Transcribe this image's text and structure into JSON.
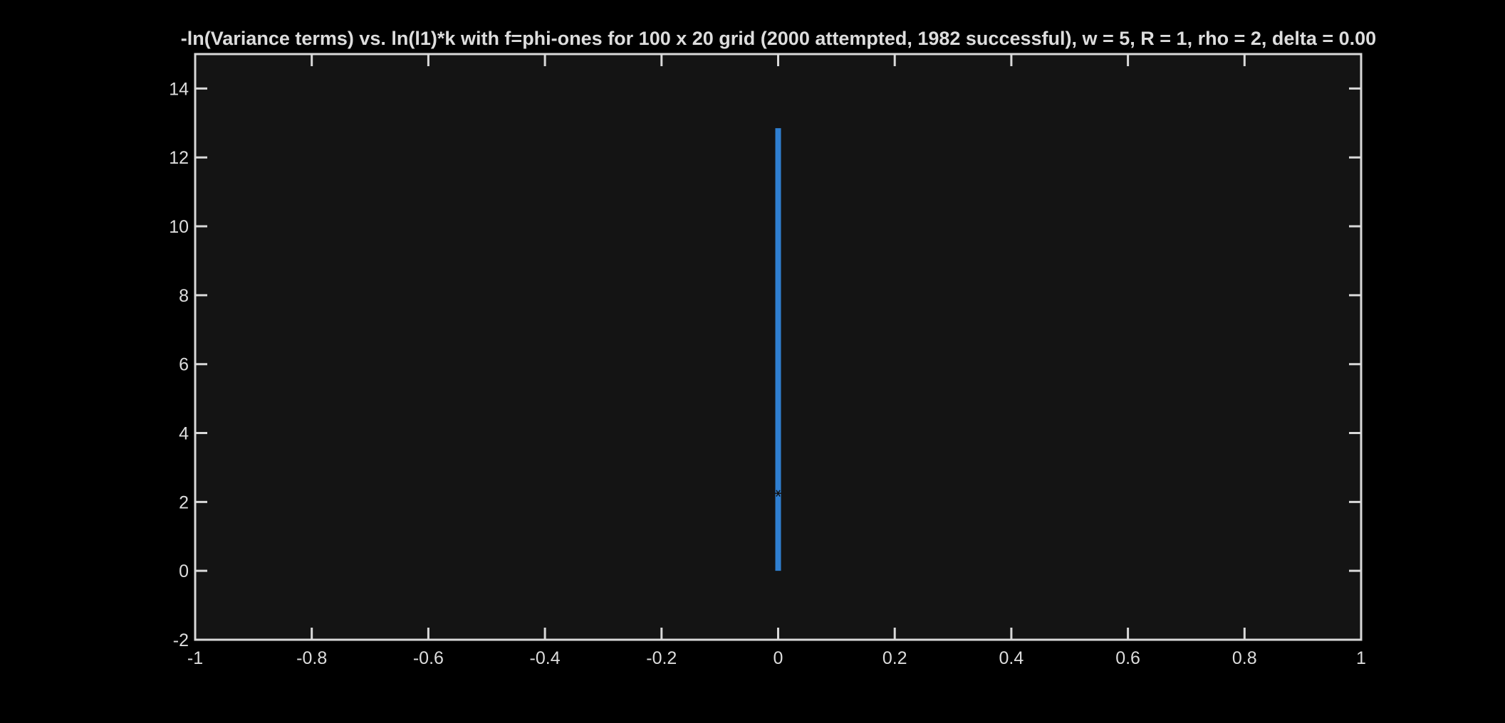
{
  "chart_data": {
    "type": "scatter",
    "title": "-ln(Variance terms) vs. ln(l1)*k with f=phi-ones for 100 x 20 grid (2000 attempted, 1982 successful), w = 5, R = 1, rho = 2, delta = 0.00",
    "xlabel": "",
    "ylabel": "",
    "xlim": [
      -1,
      1
    ],
    "ylim": [
      -2,
      15
    ],
    "xticks": [
      -1,
      -0.8,
      -0.6,
      -0.4,
      -0.2,
      0,
      0.2,
      0.4,
      0.6,
      0.8,
      1
    ],
    "xtick_labels": [
      "-1",
      "-0.8",
      "-0.6",
      "-0.4",
      "-0.2",
      "0",
      "0.2",
      "0.4",
      "0.6",
      "0.8",
      "1"
    ],
    "yticks": [
      -2,
      0,
      2,
      4,
      6,
      8,
      10,
      12,
      14
    ],
    "ytick_labels": [
      "-2",
      "0",
      "2",
      "4",
      "6",
      "8",
      "10",
      "12",
      "14"
    ],
    "grid": false,
    "legend": "none",
    "series": [
      {
        "style": "vertical-line",
        "x": 0,
        "y_range": [
          0,
          12.85
        ]
      }
    ],
    "annotations": [
      {
        "x": 0,
        "y": 2.25,
        "marker": "star"
      }
    ],
    "colors": {
      "figure_background": "#000000",
      "axes_background": "#141414",
      "axes_edge": "#d9d9d9",
      "text": "#dddddd",
      "series": "#2f7fd1"
    }
  }
}
